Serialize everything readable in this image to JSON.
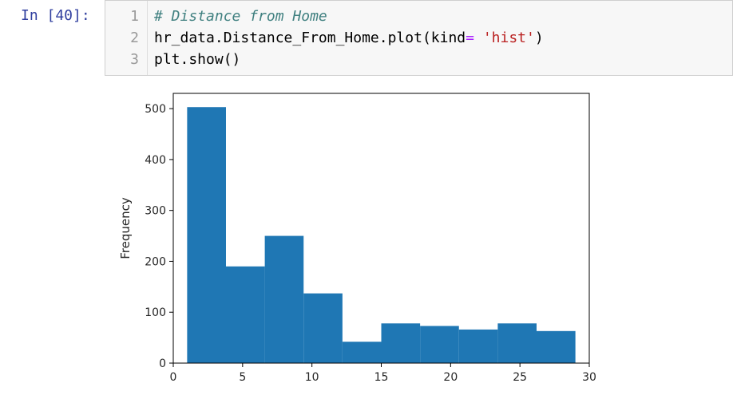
{
  "cell": {
    "prompt": "In [40]:",
    "line_numbers": [
      "1",
      "2",
      "3"
    ],
    "code": {
      "line1": "# Distance from Home",
      "line2_a": "hr_data.Distance_From_Home.plot(kind",
      "line2_op": "=",
      "line2_sp": " ",
      "line2_str": "'hist'",
      "line2_b": ")",
      "line3": "plt.show()"
    }
  },
  "chart_data": {
    "type": "bar",
    "ylabel": "Frequency",
    "bin_edges": [
      1,
      3.8,
      6.6,
      9.4,
      12.2,
      15,
      17.8,
      20.6,
      23.4,
      26.2,
      29
    ],
    "values": [
      503,
      190,
      250,
      137,
      42,
      78,
      73,
      66,
      78,
      63
    ],
    "xlim": [
      0,
      30
    ],
    "ylim": [
      0,
      530
    ],
    "xticks": [
      0,
      5,
      10,
      15,
      20,
      25,
      30
    ],
    "yticks": [
      0,
      100,
      200,
      300,
      400,
      500
    ],
    "bar_color": "#1f77b4"
  }
}
